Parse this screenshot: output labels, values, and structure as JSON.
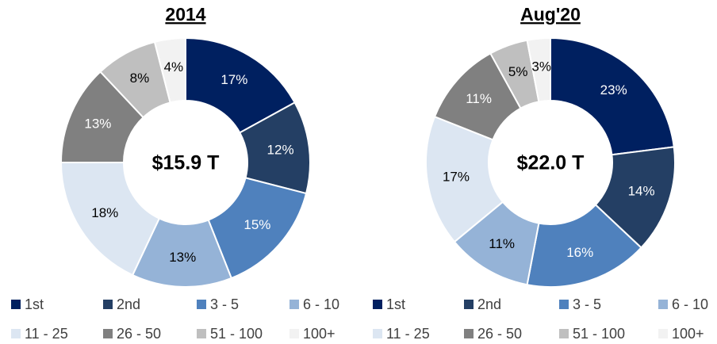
{
  "chart_data": [
    {
      "type": "pie",
      "title": "2014",
      "center_label": "$15.9 T",
      "categories": [
        "1st",
        "2nd",
        "3 - 5",
        "6 - 10",
        "11 - 25",
        "26 - 50",
        "51 - 100",
        "100+"
      ],
      "values": [
        17,
        12,
        15,
        13,
        18,
        13,
        8,
        4
      ],
      "value_labels": [
        "17%",
        "12%",
        "15%",
        "13%",
        "18%",
        "13%",
        "8%",
        "4%"
      ],
      "colors": [
        "#002060",
        "#243f64",
        "#4f81bd",
        "#95b3d7",
        "#dce6f2",
        "#808080",
        "#bfbfbf",
        "#f2f2f2"
      ]
    },
    {
      "type": "pie",
      "title": "Aug'20",
      "center_label": "$22.0 T",
      "categories": [
        "1st",
        "2nd",
        "3 - 5",
        "6 - 10",
        "11 - 25",
        "26 - 50",
        "51 - 100",
        "100+"
      ],
      "values": [
        23,
        14,
        16,
        11,
        17,
        11,
        5,
        3
      ],
      "value_labels": [
        "23%",
        "14%",
        "16%",
        "11%",
        "17%",
        "11%",
        "5%",
        "3%"
      ],
      "colors": [
        "#002060",
        "#243f64",
        "#4f81bd",
        "#95b3d7",
        "#dce6f2",
        "#808080",
        "#bfbfbf",
        "#f2f2f2"
      ]
    }
  ]
}
